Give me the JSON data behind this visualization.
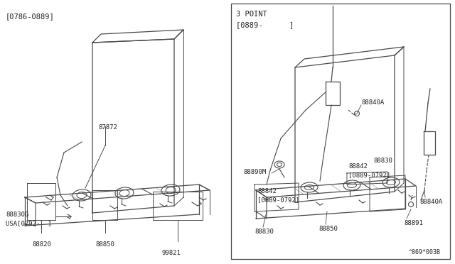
{
  "bg_color": "#ffffff",
  "line_color": "#4a4a4a",
  "text_color": "#222222",
  "fig_width": 6.4,
  "fig_height": 3.72,
  "dpi": 100,
  "left_label": "[0786-0889]",
  "right_label1": "3 POINT",
  "right_label2": "[0889-      ]",
  "footnote": "^869*003B"
}
